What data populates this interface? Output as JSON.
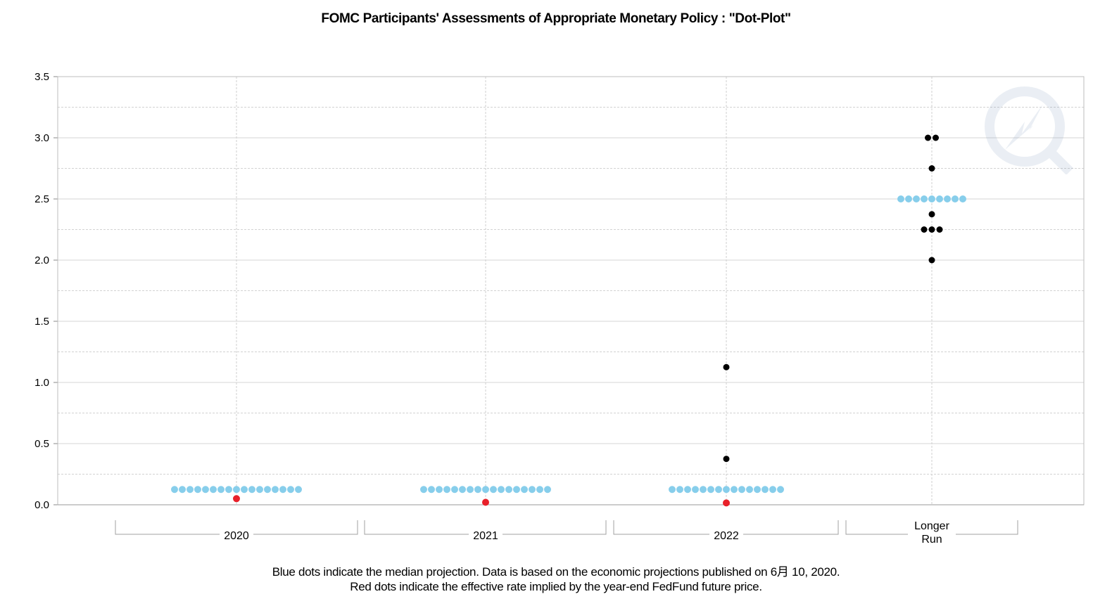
{
  "chart_data": {
    "type": "scatter",
    "title": "FOMC Participants' Assessments of Appropriate Monetary Policy : \"Dot-Plot\"",
    "categories": [
      "2020",
      "2021",
      "2022",
      "Longer Run"
    ],
    "category_label_lines": [
      [
        "2020"
      ],
      [
        "2021"
      ],
      [
        "2022"
      ],
      [
        "Longer",
        "Run"
      ]
    ],
    "yticks": [
      "0.0",
      "0.5",
      "1.0",
      "1.5",
      "2.0",
      "2.5",
      "3.0",
      "3.5"
    ],
    "ylim": [
      0,
      3.5
    ],
    "grid": true,
    "series": [
      {
        "role": "participants",
        "color": "#000000",
        "points": [
          {
            "category": "2022",
            "y": 1.125,
            "count": 1
          },
          {
            "category": "2022",
            "y": 0.375,
            "count": 1
          },
          {
            "category": "Longer Run",
            "y": 3.0,
            "count": 2
          },
          {
            "category": "Longer Run",
            "y": 2.75,
            "count": 1
          },
          {
            "category": "Longer Run",
            "y": 2.375,
            "count": 1
          },
          {
            "category": "Longer Run",
            "y": 2.25,
            "count": 3
          },
          {
            "category": "Longer Run",
            "y": 2.0,
            "count": 1
          }
        ]
      },
      {
        "role": "median",
        "color": "#87CEEB",
        "points": [
          {
            "category": "2020",
            "y": 0.125,
            "count": 17
          },
          {
            "category": "2021",
            "y": 0.125,
            "count": 17
          },
          {
            "category": "2022",
            "y": 0.125,
            "count": 15
          },
          {
            "category": "Longer Run",
            "y": 2.5,
            "count": 9
          }
        ]
      },
      {
        "role": "implied",
        "color": "#E8202A",
        "points": [
          {
            "category": "2020",
            "y": 0.05,
            "count": 1
          },
          {
            "category": "2021",
            "y": 0.02,
            "count": 1
          },
          {
            "category": "2022",
            "y": 0.015,
            "count": 1
          }
        ]
      }
    ],
    "footnote_lines": [
      "Blue dots indicate the median projection. Data is based on the economic projections published on 6月 10, 2020.",
      "Red dots indicate the effective rate implied by the year-end FedFund future price."
    ]
  }
}
